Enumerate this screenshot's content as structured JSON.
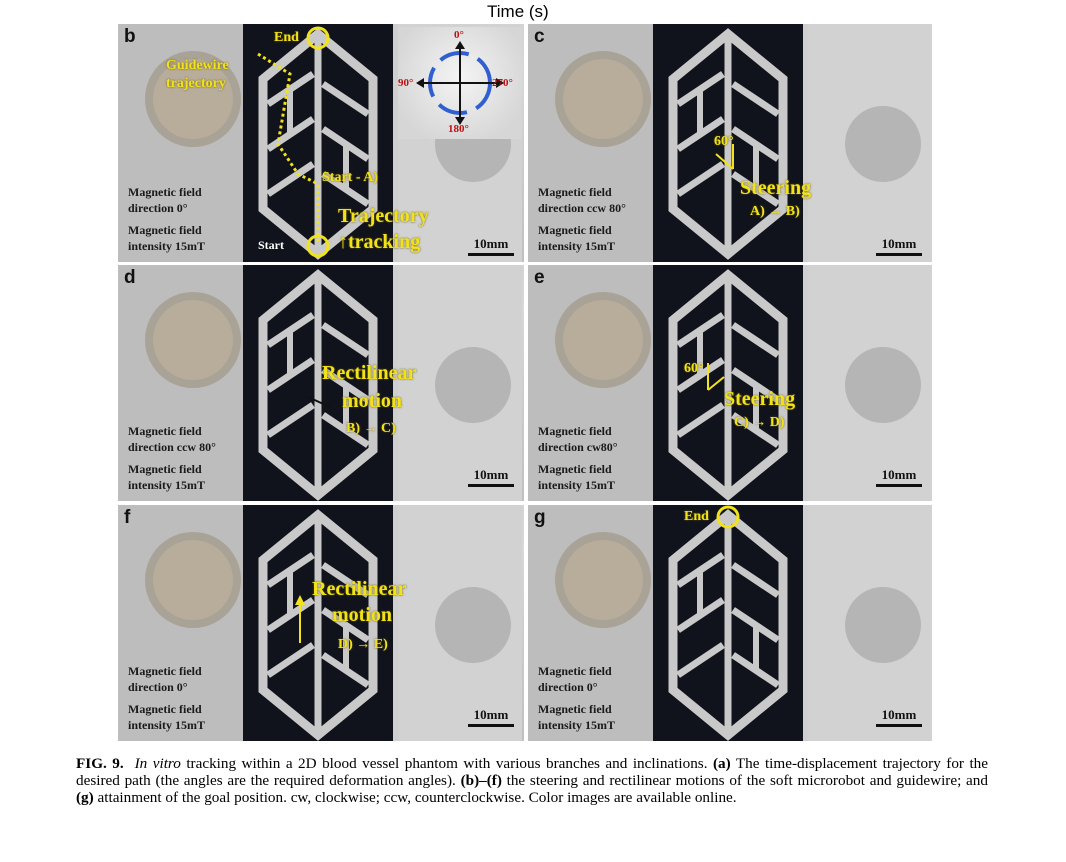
{
  "header": {
    "time_label": "Time (s)"
  },
  "panels": {
    "b": {
      "label": "b",
      "field_direction": [
        "Magnetic field",
        "direction 0°"
      ],
      "field_intensity": [
        "Magnetic field",
        "intensity 15mT"
      ],
      "scale": "10mm",
      "annotations": {
        "guidewire": [
          "Guidewire",
          "trajectory"
        ],
        "end": "End",
        "start": "Start",
        "start_a": "Start - A)",
        "trajectory": "Trajectory",
        "tracking": "↑tracking"
      }
    },
    "c": {
      "label": "c",
      "field_direction": [
        "Magnetic field",
        "direction ccw 80°"
      ],
      "field_intensity": [
        "Magnetic field",
        "intensity 15mT"
      ],
      "scale": "10mm",
      "annotations": {
        "angle": "60°",
        "steering": "Steering",
        "step": "A) → B)"
      }
    },
    "d": {
      "label": "d",
      "field_direction": [
        "Magnetic field",
        "direction ccw 80°"
      ],
      "field_intensity": [
        "Magnetic field",
        "intensity 15mT"
      ],
      "scale": "10mm",
      "annotations": {
        "motion_1": "Rectilinear",
        "motion_2": "motion",
        "step": "B) → C)"
      }
    },
    "e": {
      "label": "e",
      "field_direction": [
        "Magnetic field",
        "direction cw80°"
      ],
      "field_intensity": [
        "Magnetic field",
        "intensity 15mT"
      ],
      "scale": "10mm",
      "annotations": {
        "angle": "60°",
        "steering": "Steering",
        "step": "C) → D)"
      }
    },
    "f": {
      "label": "f",
      "field_direction": [
        "Magnetic field",
        "direction 0°"
      ],
      "field_intensity": [
        "Magnetic field",
        "intensity 15mT"
      ],
      "scale": "10mm",
      "annotations": {
        "motion_1": "Rectilinear",
        "motion_2": "motion",
        "step": "D) → E)"
      }
    },
    "g": {
      "label": "g",
      "field_direction": [
        "Magnetic field",
        "direction 0°"
      ],
      "field_intensity": [
        "Magnetic field",
        "intensity 15mT"
      ],
      "scale": "10mm",
      "annotations": {
        "end": "End"
      }
    }
  },
  "compass": {
    "top": "0°",
    "left": "90°",
    "right": "270°",
    "bottom": "180°"
  },
  "caption": {
    "fig": "FIG. 9.",
    "italic": "In vitro",
    "t1": " tracking within a 2D blood vessel phantom with various branches and inclinations. ",
    "a": "(a)",
    "t2": " The time-displacement trajectory for the desired path (the angles are the required deformation angles). ",
    "bf": "(b)–(f)",
    "t3": " the steering and rectilinear motions of the soft microrobot and guidewire; and ",
    "g": "(g)",
    "t4": " attainment of the goal position. cw, clockwise; ccw, counterclockwise. Color images are available online."
  },
  "colors": {
    "annotation": "#f2e21a",
    "compass_text": "#c01010",
    "arrow_blue": "#2f5fd0"
  }
}
